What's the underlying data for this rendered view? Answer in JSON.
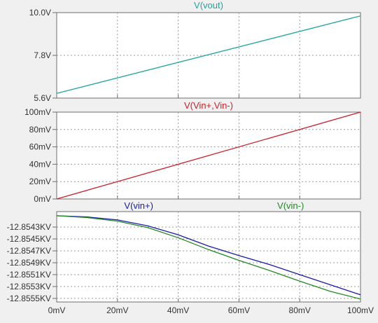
{
  "chart_data": [
    {
      "type": "line",
      "title": "",
      "xlim": [
        0,
        100
      ],
      "ylim": [
        5.6,
        10.0
      ],
      "y_tick_labels": [
        "10.0V",
        "7.8V",
        "5.6V"
      ],
      "y_ticks": [
        10.0,
        7.8,
        5.6
      ],
      "grid": true,
      "series": [
        {
          "name": "V(vout)",
          "color": "#1fa59a",
          "x": [
            0,
            100
          ],
          "y": [
            5.84,
            9.83
          ]
        }
      ]
    },
    {
      "type": "line",
      "title": "",
      "xlim": [
        0,
        100
      ],
      "ylim": [
        0,
        100
      ],
      "y_tick_labels": [
        "100mV",
        "80mV",
        "60mV",
        "40mV",
        "20mV",
        "0mV"
      ],
      "y_ticks": [
        100,
        80,
        60,
        40,
        20,
        0
      ],
      "grid": true,
      "series": [
        {
          "name": "V(Vin+,Vin-)",
          "color": "#c8202a",
          "x": [
            0,
            100
          ],
          "y": [
            0,
            100
          ]
        }
      ]
    },
    {
      "type": "line",
      "title": "",
      "xlim": [
        0,
        100
      ],
      "ylim": [
        -12.85556,
        -12.85404
      ],
      "y_tick_labels": [
        "-12.8543KV",
        "-12.8545KV",
        "-12.8547KV",
        "-12.8549KV",
        "-12.8551KV",
        "-12.8553KV",
        "-12.8555KV"
      ],
      "y_ticks": [
        -12.8543,
        -12.8545,
        -12.8547,
        -12.8549,
        -12.8551,
        -12.8553,
        -12.8555
      ],
      "x_tick_labels": [
        "0mV",
        "20mV",
        "40mV",
        "60mV",
        "80mV",
        "100mV"
      ],
      "x_ticks": [
        0,
        20,
        40,
        60,
        80,
        100
      ],
      "grid": true,
      "series": [
        {
          "name": "V(vin+)",
          "color": "#1a1aa8",
          "x": [
            0,
            10,
            20,
            30,
            40,
            50,
            60,
            70,
            80,
            90,
            100
          ],
          "y": [
            -12.85411,
            -12.85413,
            -12.85418,
            -12.85428,
            -12.85443,
            -12.85462,
            -12.85478,
            -12.85493,
            -12.8551,
            -12.85527,
            -12.85544
          ]
        },
        {
          "name": "V(vin-)",
          "color": "#228822",
          "x": [
            0,
            10,
            20,
            30,
            40,
            50,
            60,
            70,
            80,
            90,
            100
          ],
          "y": [
            -12.85411,
            -12.85414,
            -12.8542,
            -12.85431,
            -12.85448,
            -12.85468,
            -12.85486,
            -12.85503,
            -12.85521,
            -12.85538,
            -12.85551
          ]
        }
      ]
    }
  ]
}
